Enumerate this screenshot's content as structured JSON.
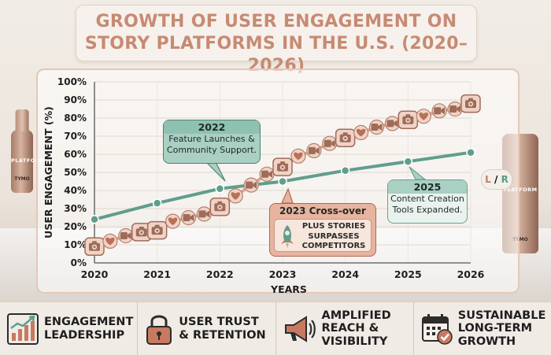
{
  "title": {
    "line1": "GROWTH OF USER ENGAGEMENT ON",
    "line2": "STORY PLATFORMS IN THE U.S. (2020–2026)"
  },
  "chart_data": {
    "type": "line",
    "title": "GROWTH OF USER ENGAGEMENT ON STORY PLATFORMS IN THE U.S. (2020–2026)",
    "xlabel": "YEARS",
    "ylabel": "USER ENGAGEMENT (%)",
    "x_ticks": [
      "2020",
      "2021",
      "2022",
      "2023",
      "2024",
      "2025",
      "2026"
    ],
    "y_ticks": [
      "0%",
      "10%",
      "20%",
      "30%",
      "40%",
      "50%",
      "60%",
      "70%",
      "80%",
      "90%",
      "100%"
    ],
    "ylim": [
      0,
      100
    ],
    "grid": true,
    "series": [
      {
        "name": "Plus Stories",
        "color": "#e1a58d",
        "x": [
          2020,
          2020.25,
          2020.5,
          2020.75,
          2021,
          2021.25,
          2021.5,
          2021.75,
          2022,
          2022.25,
          2022.5,
          2022.75,
          2023,
          2023.25,
          2023.5,
          2023.75,
          2024,
          2024.25,
          2024.5,
          2024.75,
          2025,
          2025.25,
          2025.5,
          2025.75,
          2026
        ],
        "y": [
          9,
          12,
          15,
          17,
          18,
          23,
          25,
          27,
          31,
          37,
          43,
          49,
          53,
          59,
          62,
          66,
          69,
          72,
          75,
          77,
          79,
          81,
          84,
          85,
          88
        ],
        "markers": [
          "camera",
          "heart",
          "video",
          "camera",
          "camera",
          "heart",
          "video",
          "video",
          "camera",
          "heart",
          "video",
          "video",
          "camera",
          "heart",
          "video",
          "video",
          "camera",
          "heart",
          "video",
          "video",
          "camera",
          "heart",
          "video",
          "video",
          "camera"
        ]
      },
      {
        "name": "Competitors",
        "color": "#5f9e8d",
        "x": [
          2020,
          2021,
          2022,
          2023,
          2024,
          2025,
          2026
        ],
        "y": [
          24,
          33,
          41,
          45,
          51,
          56,
          61
        ]
      }
    ],
    "annotations": [
      {
        "heading": "2022",
        "text": "Feature Launches & Community Support.",
        "x": 2022,
        "y": 41
      },
      {
        "heading": "2023 Cross-over",
        "text": "PLUS STORIES SURPASSES COMPETITORS",
        "x": 2023,
        "y": 45
      },
      {
        "heading": "2025",
        "text": "Content Creation Tools Expanded.",
        "x": 2025,
        "y": 56
      }
    ]
  },
  "decor": {
    "bottle_label": "PLATFORM",
    "bottle_brand": "TYMO",
    "badge_left": "L",
    "badge_right": "R"
  },
  "features": [
    {
      "icon": "bar-chart-icon",
      "line1": "ENGAGEMENT",
      "line2": "LEADERSHIP",
      "line3": ""
    },
    {
      "icon": "lock-icon",
      "line1": "USER TRUST",
      "line2": "& RETENTION",
      "line3": ""
    },
    {
      "icon": "megaphone-icon",
      "line1": "AMPLIFIED",
      "line2": "REACH &",
      "line3": "VISIBILITY"
    },
    {
      "icon": "calendar-check-icon",
      "line1": "SUSTAINABLE",
      "line2": "LONG-TERM",
      "line3": "GROWTH"
    }
  ]
}
